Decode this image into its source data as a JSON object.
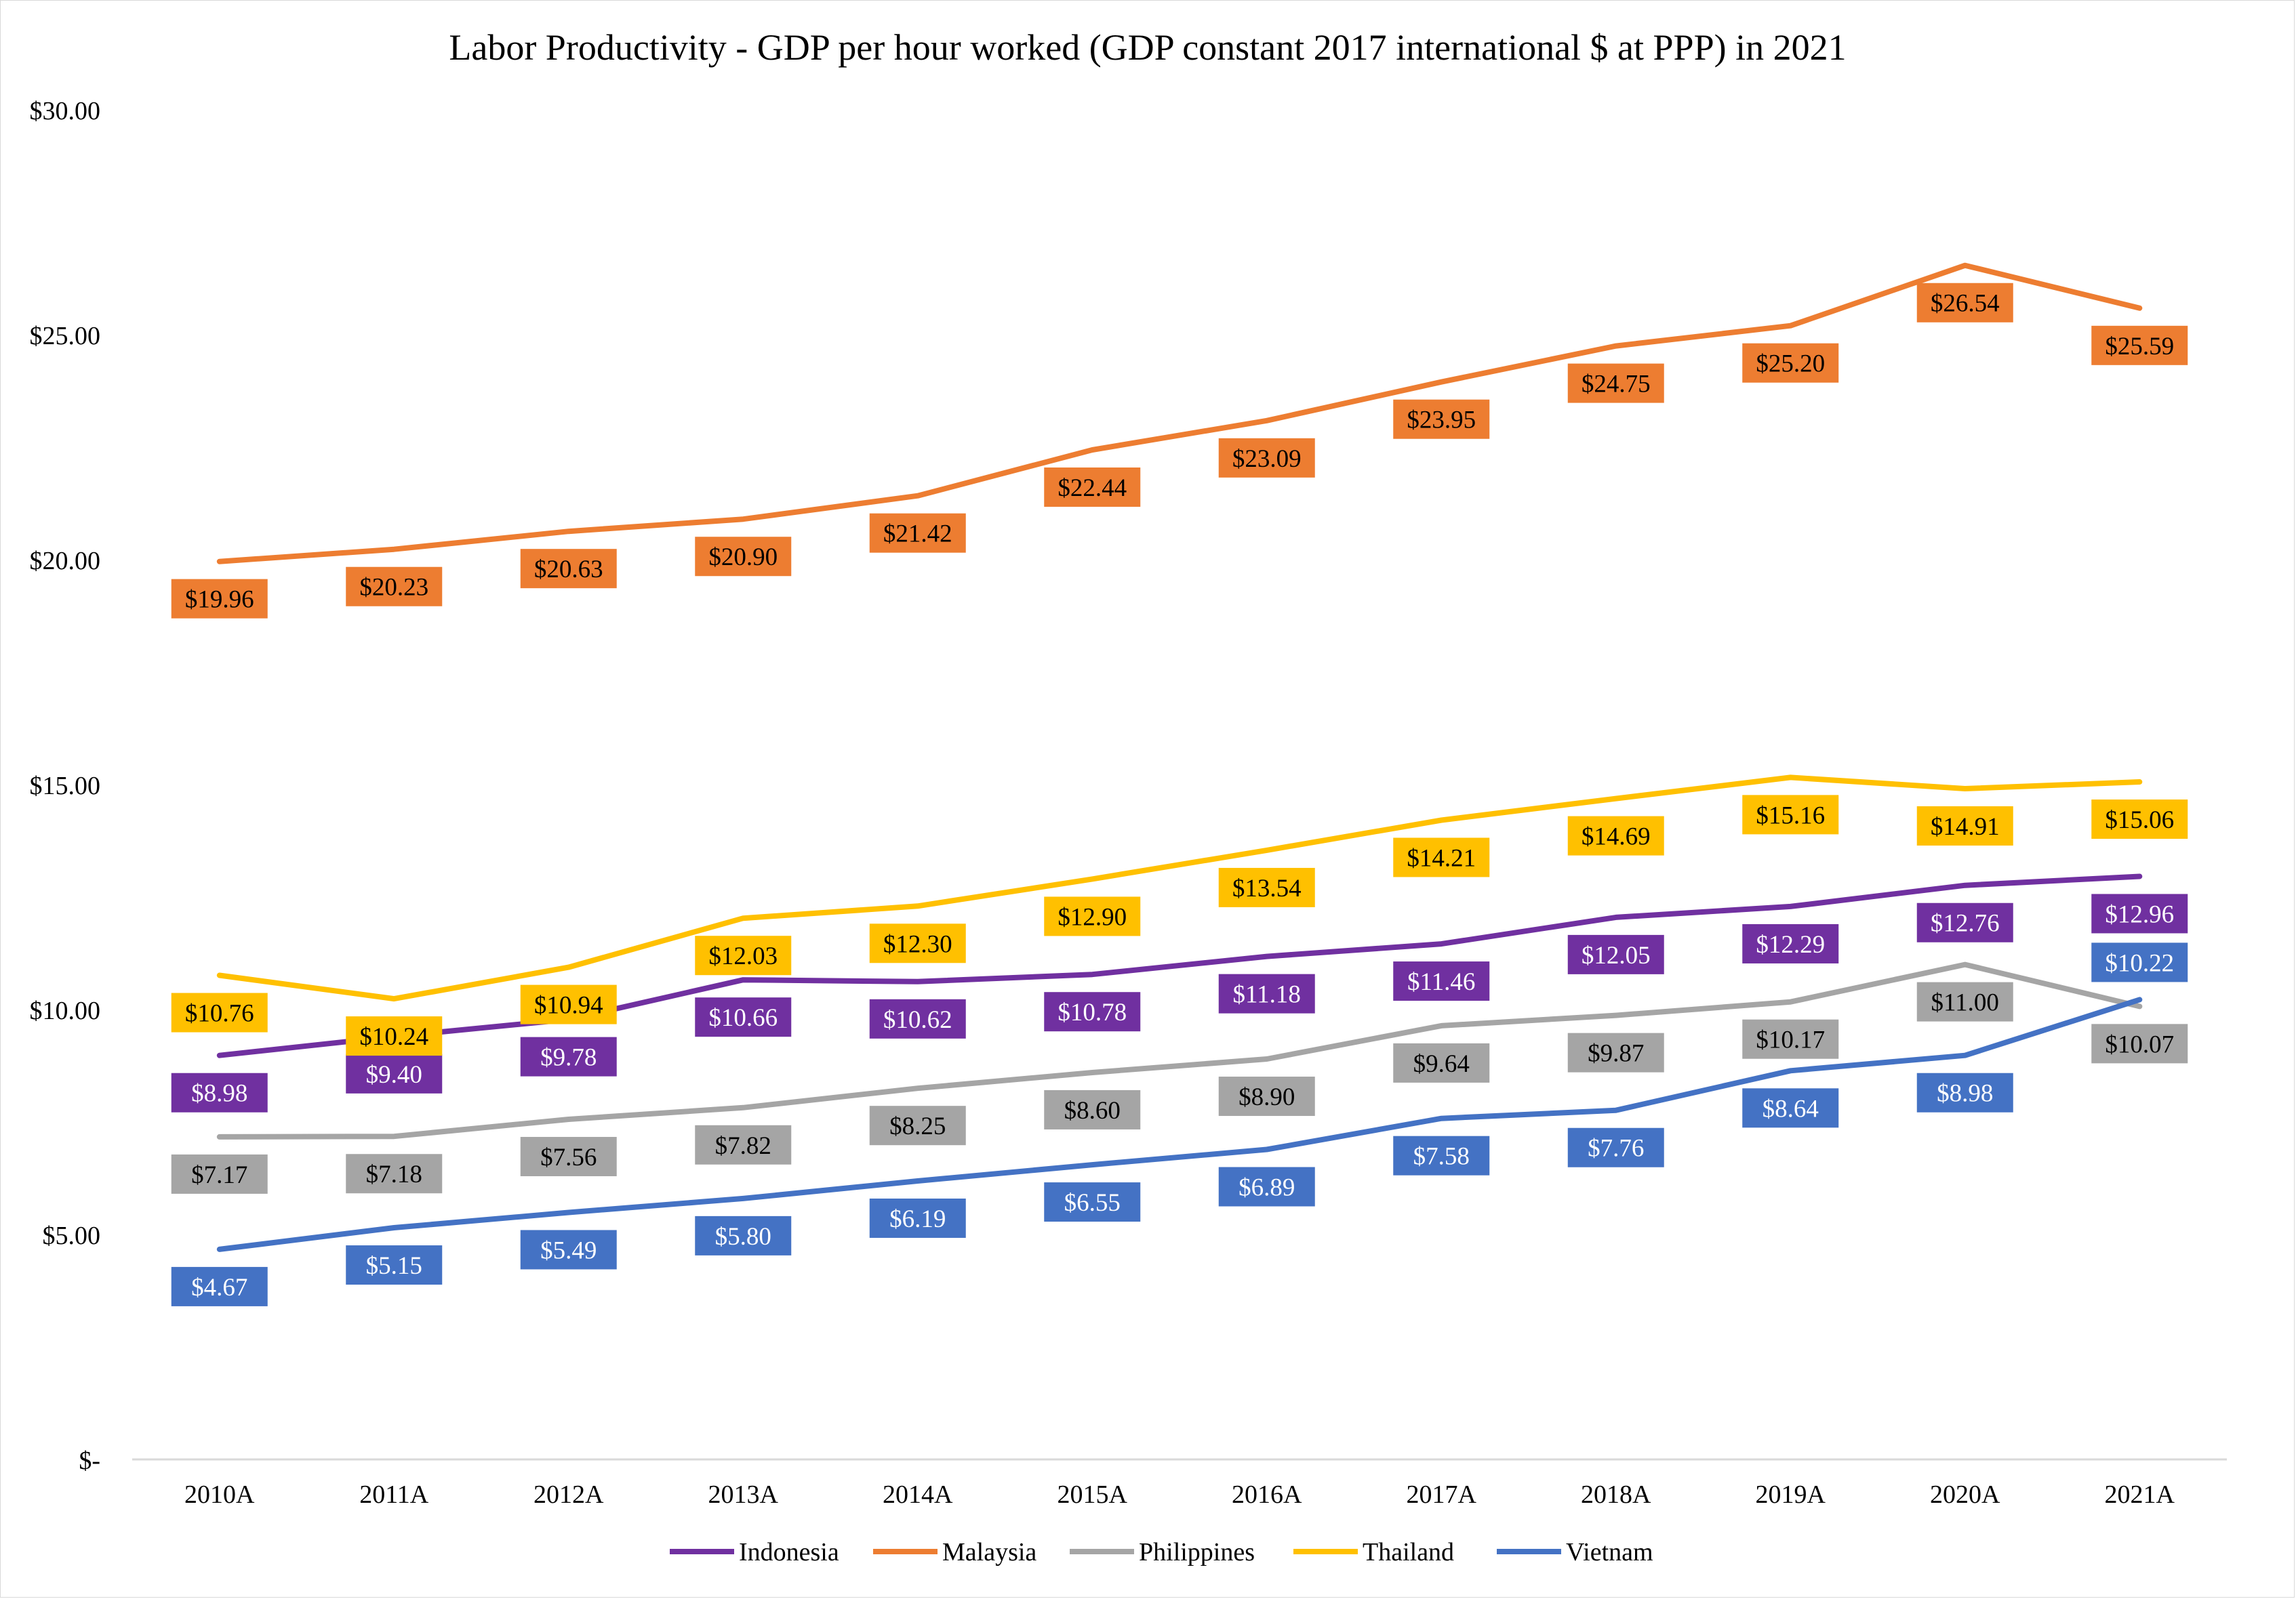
{
  "chart_data": {
    "type": "line",
    "title": "Labor Productivity - GDP per hour worked (GDP constant 2017 international $ at PPP) in 2021",
    "xlabel": "",
    "ylabel": "",
    "categories": [
      "2010A",
      "2011A",
      "2012A",
      "2013A",
      "2014A",
      "2015A",
      "2016A",
      "2017A",
      "2018A",
      "2019A",
      "2020A",
      "2021A"
    ],
    "ylim": [
      0,
      30
    ],
    "yticks": [
      0,
      5,
      10,
      15,
      20,
      25,
      30
    ],
    "ytick_labels": [
      "$-",
      "$5.00",
      "$10.00",
      "$15.00",
      "$20.00",
      "$25.00",
      "$30.00"
    ],
    "grid": false,
    "legend_position": "bottom",
    "series": [
      {
        "name": "Indonesia",
        "color": "#7030A0",
        "label_text_color": "#FFFFFF",
        "values": [
          8.98,
          9.4,
          9.78,
          10.66,
          10.62,
          10.78,
          11.18,
          11.46,
          12.05,
          12.29,
          12.76,
          12.96
        ],
        "labels": [
          "$8.98",
          "$9.40",
          "$9.78",
          "$10.66",
          "$10.62",
          "$10.78",
          "$11.18",
          "$11.46",
          "$12.05",
          "$12.29",
          "$12.76",
          "$12.96"
        ]
      },
      {
        "name": "Malaysia",
        "color": "#ED7D31",
        "label_text_color": "#000000",
        "values": [
          19.96,
          20.23,
          20.63,
          20.9,
          21.42,
          22.44,
          23.09,
          23.95,
          24.75,
          25.2,
          26.54,
          25.59
        ],
        "labels": [
          "$19.96",
          "$20.23",
          "$20.63",
          "$20.90",
          "$21.42",
          "$22.44",
          "$23.09",
          "$23.95",
          "$24.75",
          "$25.20",
          "$26.54",
          "$25.59"
        ]
      },
      {
        "name": "Philippines",
        "color": "#A5A5A5",
        "label_text_color": "#000000",
        "values": [
          7.17,
          7.18,
          7.56,
          7.82,
          8.25,
          8.6,
          8.9,
          9.64,
          9.87,
          10.17,
          11.0,
          10.07
        ],
        "labels": [
          "$7.17",
          "$7.18",
          "$7.56",
          "$7.82",
          "$8.25",
          "$8.60",
          "$8.90",
          "$9.64",
          "$9.87",
          "$10.17",
          "$11.00",
          "$10.07"
        ]
      },
      {
        "name": "Thailand",
        "color": "#FFC000",
        "label_text_color": "#000000",
        "values": [
          10.76,
          10.24,
          10.94,
          12.03,
          12.3,
          12.9,
          13.54,
          14.21,
          14.69,
          15.16,
          14.91,
          15.06
        ],
        "labels": [
          "$10.76",
          "$10.24",
          "$10.94",
          "$12.03",
          "$12.30",
          "$12.90",
          "$13.54",
          "$14.21",
          "$14.69",
          "$15.16",
          "$14.91",
          "$15.06"
        ]
      },
      {
        "name": "Vietnam",
        "color": "#4472C4",
        "label_text_color": "#FFFFFF",
        "values": [
          4.67,
          5.15,
          5.49,
          5.8,
          6.19,
          6.55,
          6.89,
          7.58,
          7.76,
          8.64,
          8.98,
          10.22
        ],
        "labels": [
          "$4.67",
          "$5.15",
          "$5.49",
          "$5.80",
          "$6.19",
          "$6.55",
          "$6.89",
          "$7.58",
          "$7.76",
          "$8.64",
          "$8.98",
          "$10.22"
        ]
      }
    ]
  }
}
